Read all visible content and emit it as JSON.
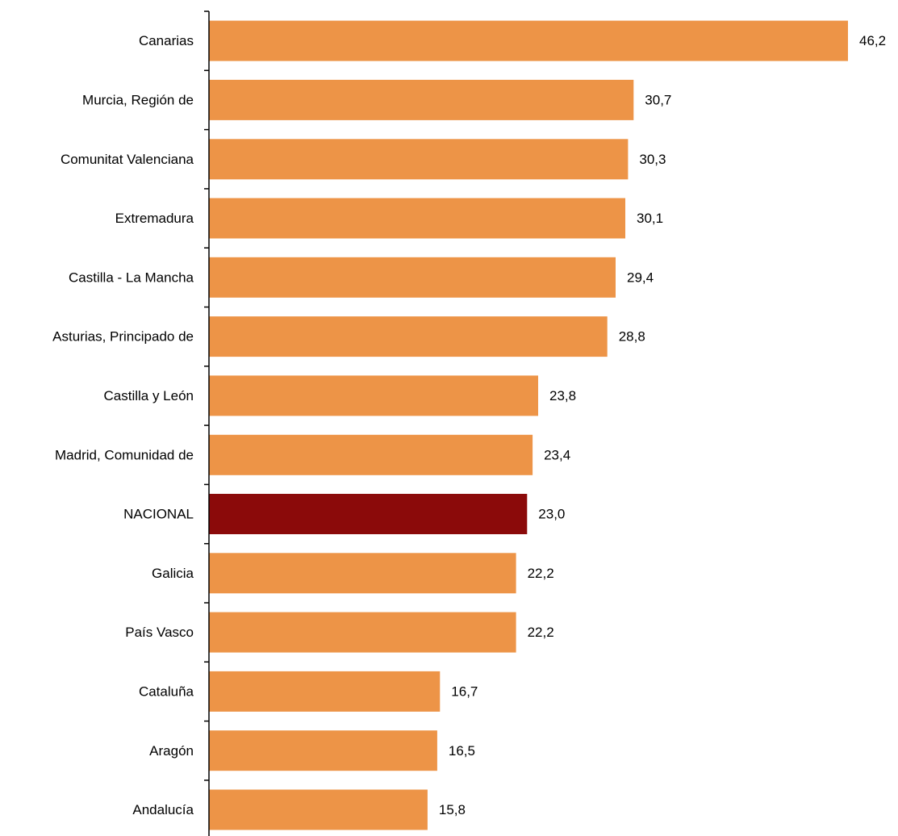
{
  "chart_data": {
    "type": "bar",
    "orientation": "horizontal",
    "categories": [
      "Canarias",
      "Murcia, Región de",
      "Comunitat Valenciana",
      "Extremadura",
      "Castilla - La Mancha",
      "Asturias, Principado de",
      "Castilla y León",
      "Madrid, Comunidad de",
      "NACIONAL",
      "Galicia",
      "País Vasco",
      "Cataluña",
      "Aragón",
      "Andalucía"
    ],
    "values": [
      46.2,
      30.7,
      30.3,
      30.1,
      29.4,
      28.8,
      23.8,
      23.4,
      23.0,
      22.2,
      22.2,
      16.7,
      16.5,
      15.8
    ],
    "value_labels": [
      "46,2",
      "30,7",
      "30,3",
      "30,1",
      "29,4",
      "28,8",
      "23,8",
      "23,4",
      "23,0",
      "22,2",
      "22,2",
      "16,7",
      "16,5",
      "15,8"
    ],
    "highlight_category": "NACIONAL",
    "colors": {
      "bar": "#ED9447",
      "highlight": "#8B0A0A",
      "axis": "#000000",
      "text": "#000000"
    },
    "xlim": [
      0,
      46.2
    ],
    "grid": false,
    "legend": "none"
  }
}
